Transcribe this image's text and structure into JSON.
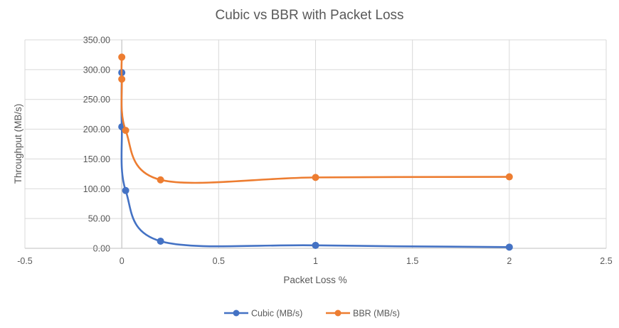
{
  "chart_data": {
    "type": "scatter",
    "title": "Cubic vs BBR with Packet Loss",
    "xlabel": "Packet Loss %",
    "ylabel": "Throughput (MB/s)",
    "xlim": [
      -0.5,
      2.5
    ],
    "ylim": [
      0,
      350
    ],
    "xticks": [
      -0.5,
      0,
      0.5,
      1,
      1.5,
      2,
      2.5
    ],
    "xtick_labels": [
      "-0.5",
      "0",
      "0.5",
      "1",
      "1.5",
      "2",
      "2.5"
    ],
    "yticks": [
      0,
      50,
      100,
      150,
      200,
      250,
      300,
      350
    ],
    "ytick_labels": [
      "0.00",
      "50.00",
      "100.00",
      "150.00",
      "200.00",
      "250.00",
      "300.00",
      "350.00"
    ],
    "grid": true,
    "smooth": true,
    "legend_position": "bottom",
    "series": [
      {
        "name": "Cubic (MB/s)",
        "color": "#4472C4",
        "x": [
          0,
          0,
          0.02,
          0.2,
          1,
          2
        ],
        "y": [
          295,
          204,
          97,
          12,
          5,
          2
        ]
      },
      {
        "name": "BBR (MB/s)",
        "color": "#ED7D31",
        "x": [
          0,
          0,
          0.02,
          0.2,
          1,
          2
        ],
        "y": [
          321,
          284,
          198,
          115,
          119,
          120
        ]
      }
    ]
  }
}
